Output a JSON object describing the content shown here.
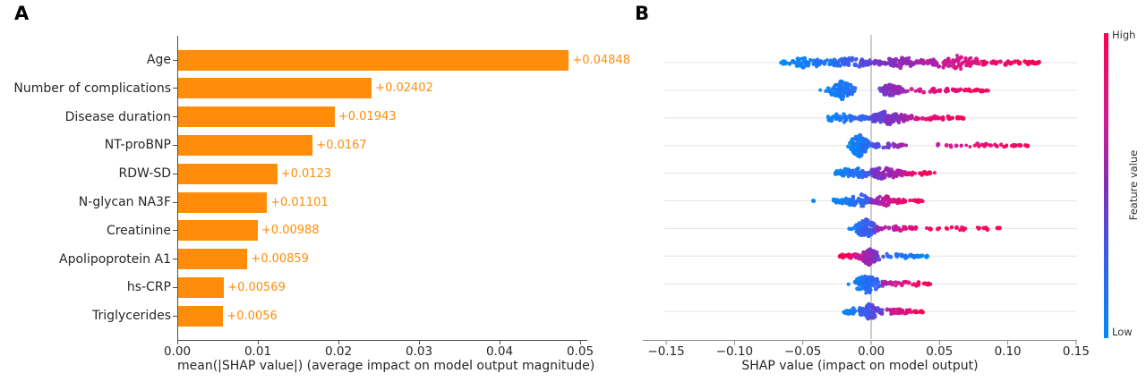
{
  "panel_labels": {
    "a": "A",
    "b": "B"
  },
  "colors": {
    "background": "#ffffff",
    "bar_orange": "#ff8d0a",
    "beeswarm_high": "#ff0051",
    "beeswarm_low": "#008bfb",
    "zero_line": "#999999",
    "row_gridline": "#e3e3e3",
    "spine_a": "#4d4d4d",
    "spine_b": "#8c8c8c"
  },
  "chart_data": [
    {
      "type": "bar",
      "orientation": "horizontal",
      "categories": [
        "Age",
        "Number of complications",
        "Disease duration",
        "NT-proBNP",
        "RDW-SD",
        "N-glycan NA3F",
        "Creatinine",
        "Apolipoprotein A1",
        "hs-CRP",
        "Triglycerides"
      ],
      "values": [
        0.04848,
        0.02402,
        0.01943,
        0.0167,
        0.0123,
        0.01101,
        0.00988,
        0.00859,
        0.00569,
        0.0056
      ],
      "value_labels": [
        "+0.04848",
        "+0.02402",
        "+0.01943",
        "+0.0167",
        "+0.0123",
        "+0.01101",
        "+0.00988",
        "+0.00859",
        "+0.00569",
        "+0.0056"
      ],
      "xlabel": "mean(|SHAP value|) (average impact on model output magnitude)",
      "xlim": [
        0,
        0.05
      ],
      "x_ticks": [
        0,
        0.01,
        0.02,
        0.03,
        0.04,
        0.05
      ],
      "x_tick_labels": [
        "0.00",
        "0.01",
        "0.02",
        "0.03",
        "0.04",
        "0.05"
      ],
      "grid": false,
      "bar_color": "#ff8d0a"
    },
    {
      "type": "scatter",
      "subtype": "beeswarm",
      "xlabel": "SHAP value (impact on model output)",
      "xlim": [
        -0.167,
        0.151
      ],
      "x_ticks": [
        -0.15,
        -0.1,
        -0.05,
        0,
        0.05,
        0.1,
        0.15
      ],
      "x_tick_labels": [
        "−0.15",
        "−0.10",
        "−0.05",
        "0.00",
        "0.05",
        "0.10",
        "0.15"
      ],
      "legend_position": "right-colorbar",
      "colorbar": {
        "high_label": "High",
        "low_label": "Low",
        "axis_label": "Feature value",
        "high_color": "#ff0051",
        "low_color": "#008bfb"
      },
      "rows": [
        {
          "feature": "Age",
          "shap_range": [
            -0.066,
            0.124
          ],
          "clusters": [
            {
              "kind": "band",
              "x0": -0.066,
              "x1": -0.028,
              "peak": -0.046,
              "half": 6.5,
              "n": 55,
              "t0": 0.0,
              "t1": 0.18
            },
            {
              "kind": "band",
              "x0": -0.03,
              "x1": 0.004,
              "peak": -0.013,
              "half": 7,
              "n": 70,
              "t0": 0.15,
              "t1": 0.45
            },
            {
              "kind": "band",
              "x0": 0.002,
              "x1": 0.04,
              "peak": 0.022,
              "half": 7.5,
              "n": 75,
              "t0": 0.42,
              "t1": 0.62
            },
            {
              "kind": "band",
              "x0": 0.04,
              "x1": 0.086,
              "peak": 0.06,
              "half": 9,
              "n": 85,
              "t0": 0.62,
              "t1": 0.88
            },
            {
              "kind": "band",
              "x0": 0.086,
              "x1": 0.124,
              "peak": 0.094,
              "half": 5,
              "n": 40,
              "t0": 0.88,
              "t1": 1.0
            }
          ]
        },
        {
          "feature": "Number of complications",
          "shap_range": [
            -0.032,
            0.086
          ],
          "clusters": [
            {
              "kind": "blob",
              "c": -0.021,
              "s": 0.0048,
              "half": 11,
              "n": 90,
              "t0": 0.02,
              "t1": 0.22
            },
            {
              "kind": "blob",
              "c": 0.015,
              "s": 0.0045,
              "half": 8,
              "n": 55,
              "t0": 0.42,
              "t1": 0.6
            },
            {
              "kind": "streak",
              "x0": 0.028,
              "x1": 0.086,
              "peak": 0.045,
              "half": 2.6,
              "n": 55,
              "t0": 0.72,
              "t1": 1.0
            }
          ]
        },
        {
          "feature": "Disease duration",
          "shap_range": [
            -0.033,
            0.068
          ],
          "clusters": [
            {
              "kind": "band",
              "x0": -0.033,
              "x1": 0.001,
              "peak": -0.024,
              "half": 6,
              "n": 60,
              "t0": 0.0,
              "t1": 0.3
            },
            {
              "kind": "band",
              "x0": 0.0,
              "x1": 0.03,
              "peak": 0.011,
              "half": 9,
              "n": 115,
              "t0": 0.35,
              "t1": 0.65
            },
            {
              "kind": "streak",
              "x0": 0.03,
              "x1": 0.068,
              "peak": 0.04,
              "half": 2.6,
              "n": 38,
              "t0": 0.8,
              "t1": 1.0
            }
          ]
        },
        {
          "feature": "NT-proBNP",
          "shap_range": [
            -0.02,
            0.115
          ],
          "clusters": [
            {
              "kind": "blob",
              "c": -0.009,
              "s": 0.0036,
              "half": 13,
              "n": 110,
              "t0": 0.0,
              "t1": 0.25
            },
            {
              "kind": "streak",
              "x0": 0.0,
              "x1": 0.026,
              "peak": 0.009,
              "half": 3.2,
              "n": 34,
              "t0": 0.3,
              "t1": 0.62
            },
            {
              "kind": "streak",
              "x0": 0.048,
              "x1": 0.115,
              "peak": 0.07,
              "half": 2.6,
              "n": 40,
              "t0": 0.72,
              "t1": 1.0
            }
          ]
        },
        {
          "feature": "RDW-SD",
          "shap_range": [
            -0.026,
            0.047
          ],
          "clusters": [
            {
              "kind": "band",
              "x0": -0.026,
              "x1": 0.0,
              "peak": -0.012,
              "half": 7,
              "n": 70,
              "t0": 0.0,
              "t1": 0.3
            },
            {
              "kind": "band",
              "x0": 0.0,
              "x1": 0.028,
              "peak": 0.01,
              "half": 8.5,
              "n": 95,
              "t0": 0.4,
              "t1": 0.78
            },
            {
              "kind": "streak",
              "x0": 0.028,
              "x1": 0.047,
              "peak": 0.034,
              "half": 2.6,
              "n": 20,
              "t0": 0.88,
              "t1": 1.0
            }
          ]
        },
        {
          "feature": "N-glycan NA3F",
          "shap_range": [
            -0.046,
            0.038
          ],
          "clusters": [
            {
              "kind": "streak",
              "x0": -0.046,
              "x1": -0.042,
              "peak": -0.044,
              "half": 0.5,
              "n": 2,
              "t0": 0.0,
              "t1": 0.05
            },
            {
              "kind": "band",
              "x0": -0.028,
              "x1": 0.0,
              "peak": -0.007,
              "half": 8,
              "n": 75,
              "t0": 0.02,
              "t1": 0.3
            },
            {
              "kind": "band",
              "x0": 0.0,
              "x1": 0.021,
              "peak": 0.008,
              "half": 6.5,
              "n": 60,
              "t0": 0.5,
              "t1": 0.85
            },
            {
              "kind": "streak",
              "x0": 0.021,
              "x1": 0.038,
              "peak": 0.027,
              "half": 2.4,
              "n": 18,
              "t0": 0.9,
              "t1": 1.0
            }
          ]
        },
        {
          "feature": "Creatinine",
          "shap_range": [
            -0.017,
            0.096
          ],
          "clusters": [
            {
              "kind": "blob",
              "c": -0.004,
              "s": 0.0042,
              "half": 10.5,
              "n": 95,
              "t0": 0.08,
              "t1": 0.45
            },
            {
              "kind": "streak",
              "x0": 0.004,
              "x1": 0.033,
              "peak": 0.012,
              "half": 3.6,
              "n": 40,
              "t0": 0.55,
              "t1": 0.85
            },
            {
              "kind": "streak",
              "x0": 0.04,
              "x1": 0.096,
              "peak": 0.06,
              "half": 2.2,
              "n": 22,
              "t0": 0.95,
              "t1": 1.0
            }
          ]
        },
        {
          "feature": "Apolipoprotein A1",
          "shap_range": [
            -0.024,
            0.043
          ],
          "color_inverted": true,
          "clusters": [
            {
              "kind": "streak",
              "x0": -0.024,
              "x1": -0.009,
              "peak": -0.015,
              "half": 2.8,
              "n": 28,
              "t0": 1.0,
              "t1": 0.85
            },
            {
              "kind": "blob",
              "c": -0.002,
              "s": 0.0042,
              "half": 10,
              "n": 85,
              "t0": 0.75,
              "t1": 0.35
            },
            {
              "kind": "streak",
              "x0": 0.01,
              "x1": 0.043,
              "peak": 0.018,
              "half": 3.2,
              "n": 38,
              "t0": 0.22,
              "t1": 0.0
            }
          ]
        },
        {
          "feature": "hs-CRP",
          "shap_range": [
            -0.016,
            0.044
          ],
          "clusters": [
            {
              "kind": "blob",
              "c": -0.003,
              "s": 0.005,
              "half": 11,
              "n": 95,
              "t0": 0.0,
              "t1": 0.35
            },
            {
              "kind": "streak",
              "x0": 0.007,
              "x1": 0.044,
              "peak": 0.015,
              "half": 3.2,
              "n": 35,
              "t0": 0.6,
              "t1": 1.0
            }
          ]
        },
        {
          "feature": "Triglycerides",
          "shap_range": [
            -0.02,
            0.038
          ],
          "clusters": [
            {
              "kind": "streak",
              "x0": -0.02,
              "x1": -0.005,
              "peak": -0.012,
              "half": 3.4,
              "n": 25,
              "t0": 0.0,
              "t1": 0.2
            },
            {
              "kind": "blob",
              "c": -0.001,
              "s": 0.004,
              "half": 9,
              "n": 75,
              "t0": 0.15,
              "t1": 0.5
            },
            {
              "kind": "streak",
              "x0": 0.007,
              "x1": 0.038,
              "peak": 0.016,
              "half": 3.6,
              "n": 40,
              "t0": 0.6,
              "t1": 1.0
            }
          ]
        }
      ]
    }
  ]
}
